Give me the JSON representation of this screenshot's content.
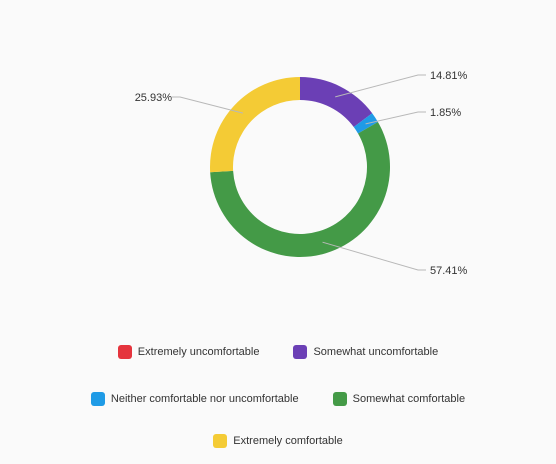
{
  "chart_data": {
    "type": "pie",
    "variant": "donut",
    "categories": [
      "Extremely uncomfortable",
      "Somewhat uncomfortable",
      "Neither comfortable nor uncomfortable",
      "Somewhat comfortable",
      "Extremely comfortable"
    ],
    "values": [
      0,
      14.81,
      1.85,
      57.41,
      25.93
    ],
    "data_labels": [
      "",
      "14.81%",
      "1.85%",
      "57.41%",
      "25.93%"
    ],
    "colors": [
      "#e5343d",
      "#6b3fb5",
      "#1f9be6",
      "#449a47",
      "#f4cb35"
    ],
    "legend_position": "bottom",
    "title": ""
  }
}
